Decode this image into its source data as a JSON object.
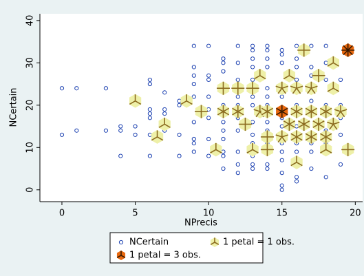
{
  "chart_data": {
    "type": "sunflower",
    "xlabel": "NPrecis",
    "ylabel": "NCertain",
    "xlim": [
      -1.5,
      20.5
    ],
    "ylim": [
      -2.8,
      41.6
    ],
    "xticks": [
      0,
      5,
      10,
      15,
      20
    ],
    "yticks": [
      0,
      10,
      20,
      30,
      40
    ],
    "grid": false,
    "series": [
      {
        "name": "NCertain",
        "kind": "point",
        "color": "#1a3fb0",
        "x": [
          0,
          0,
          1,
          1,
          3,
          3,
          4,
          4,
          4,
          5,
          5,
          6,
          6,
          6,
          6,
          6,
          6,
          6,
          7,
          7,
          7,
          7,
          8,
          8,
          8,
          8,
          9,
          9,
          9,
          9,
          9,
          9,
          9,
          9,
          9,
          10,
          10,
          10,
          10,
          10,
          10,
          10,
          10,
          11,
          11,
          11,
          11,
          11,
          11,
          11,
          11,
          11,
          11,
          12,
          12,
          12,
          12,
          12,
          12,
          12,
          12,
          12,
          12,
          12,
          13,
          13,
          13,
          13,
          13,
          13,
          13,
          13,
          13,
          13,
          13,
          13,
          13,
          13,
          14,
          14,
          14,
          14,
          14,
          14,
          14,
          14,
          14,
          14,
          14,
          14,
          14,
          14,
          15,
          15,
          15,
          15,
          15,
          15,
          15,
          15,
          15,
          15,
          15,
          15,
          15,
          15,
          16,
          16,
          16,
          16,
          16,
          16,
          16,
          16,
          16,
          16,
          16,
          17,
          17,
          17,
          17,
          17,
          17,
          17,
          17,
          17,
          18,
          18,
          18,
          18,
          18,
          18,
          18,
          18,
          19,
          19,
          19,
          19,
          19
        ],
        "y": [
          24,
          13,
          24,
          14,
          24,
          14,
          15,
          14,
          8,
          15,
          13,
          26,
          25,
          19,
          18,
          17,
          13,
          8,
          23,
          19,
          18,
          14,
          21,
          20,
          13,
          8,
          34,
          29,
          27,
          25,
          22,
          16,
          12,
          11,
          9,
          34,
          27,
          26,
          22,
          19,
          17,
          12,
          8,
          31,
          30,
          28,
          20,
          16,
          14,
          12,
          9,
          8,
          5,
          34,
          30,
          26,
          25,
          22,
          20,
          17,
          14,
          9,
          6,
          4,
          34,
          33,
          31,
          29,
          26,
          25,
          22,
          20,
          16,
          13,
          11,
          8,
          6,
          5,
          34,
          33,
          31,
          29,
          24,
          22,
          20,
          18,
          16,
          14,
          11,
          9,
          6,
          5,
          33,
          32,
          30,
          24,
          22,
          17,
          15,
          13,
          11,
          9,
          7,
          4,
          1,
          0,
          34,
          31,
          29,
          26,
          23,
          20,
          15,
          11,
          9,
          3,
          2,
          34,
          29,
          27,
          25,
          23,
          21,
          11,
          9,
          5,
          34,
          30,
          26,
          20,
          18,
          14,
          11,
          3,
          26,
          20,
          17,
          13,
          6
        ]
      },
      {
        "name": "1 petal = 1 obs.",
        "kind": "sunflower",
        "color": "#eef0a8",
        "petal_color": "#8b6b1f",
        "x": [
          5,
          6.5,
          7,
          8.5,
          9.5,
          10.5,
          11,
          11,
          12,
          12,
          12.5,
          13,
          13,
          13.5,
          13.5,
          14,
          14,
          14,
          15,
          15,
          15.5,
          15.5,
          16,
          16,
          16,
          16.5,
          16,
          16.5,
          17,
          17,
          17,
          17.5,
          17.5,
          18,
          18,
          18,
          18.5,
          18.5,
          18.5,
          19,
          19.5
        ],
        "y": [
          21,
          12.5,
          15.5,
          21,
          18.5,
          9.5,
          24,
          18.5,
          24,
          18.5,
          15.5,
          24,
          9.5,
          18.5,
          27,
          12.5,
          9.5,
          18.5,
          24,
          12.5,
          15.5,
          27,
          24,
          18.5,
          12.5,
          15.5,
          6.5,
          33,
          24,
          18.5,
          12.5,
          15.5,
          27,
          18.5,
          12.5,
          9.5,
          15.5,
          24,
          30,
          18.5,
          9.5
        ],
        "petals": [
          3,
          3,
          3,
          3,
          4,
          3,
          4,
          6,
          4,
          6,
          4,
          4,
          3,
          5,
          3,
          4,
          4,
          6,
          5,
          5,
          6,
          3,
          5,
          6,
          6,
          6,
          3,
          4,
          5,
          6,
          6,
          6,
          4,
          6,
          6,
          3,
          5,
          3,
          3,
          5,
          4
        ]
      },
      {
        "name": "1 petal = 3 obs.",
        "kind": "sunflower",
        "color": "#e8680f",
        "petal_color": "#3a1a00",
        "x": [
          15,
          19.5
        ],
        "y": [
          18.5,
          33
        ],
        "petals": [
          6,
          8
        ]
      }
    ]
  }
}
